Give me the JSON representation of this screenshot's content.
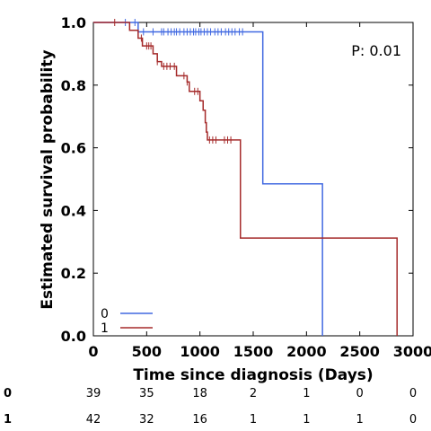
{
  "chart_data": {
    "type": "line",
    "subtype": "kaplan-meier",
    "xlabel": "Time since diagnosis (Days)",
    "ylabel": "Estimated survival probability",
    "xlim": [
      0,
      3000
    ],
    "ylim": [
      0.0,
      1.0
    ],
    "xticks": [
      "0",
      "500",
      "1000",
      "1500",
      "2000",
      "2500",
      "3000"
    ],
    "yticks": [
      "0.0",
      "0.2",
      "0.4",
      "0.6",
      "0.8",
      "1.0"
    ],
    "xtick_values": [
      0,
      500,
      1000,
      1500,
      2000,
      2500,
      3000
    ],
    "ytick_values": [
      0.0,
      0.2,
      0.4,
      0.6,
      0.8,
      1.0
    ],
    "annotation": "P: 0.01",
    "legend_position": "bottom-left",
    "series": [
      {
        "name": "0",
        "color": "#4169e1",
        "steps": [
          [
            0,
            1.0
          ],
          [
            420,
            0.97
          ],
          [
            1590,
            0.485
          ],
          [
            2150,
            0.0
          ]
        ],
        "end": 2150,
        "censor": [
          300,
          390,
          470,
          560,
          640,
          660,
          700,
          730,
          760,
          780,
          810,
          850,
          880,
          910,
          940,
          960,
          990,
          1010,
          1040,
          1070,
          1100,
          1140,
          1170,
          1200,
          1240,
          1270,
          1300,
          1330,
          1370,
          1400
        ]
      },
      {
        "name": "1",
        "color": "#a52a2a",
        "steps": [
          [
            0,
            1.0
          ],
          [
            340,
            0.975
          ],
          [
            420,
            0.95
          ],
          [
            460,
            0.925
          ],
          [
            560,
            0.9
          ],
          [
            600,
            0.875
          ],
          [
            640,
            0.86
          ],
          [
            780,
            0.83
          ],
          [
            880,
            0.81
          ],
          [
            900,
            0.78
          ],
          [
            1000,
            0.75
          ],
          [
            1030,
            0.72
          ],
          [
            1050,
            0.68
          ],
          [
            1060,
            0.65
          ],
          [
            1070,
            0.625
          ],
          [
            1380,
            0.312
          ],
          [
            2850,
            0.0
          ]
        ],
        "end": 2850,
        "censor": [
          200,
          450,
          500,
          520,
          540,
          600,
          660,
          690,
          720,
          760,
          850,
          880,
          950,
          980,
          1090,
          1120,
          1150,
          1230,
          1260,
          1290
        ]
      }
    ],
    "risk_table": {
      "times": [
        0,
        500,
        1000,
        1500,
        2000,
        2500,
        3000
      ],
      "rows": [
        {
          "label": "0",
          "counts": [
            "39",
            "35",
            "18",
            "2",
            "1",
            "0",
            "0"
          ]
        },
        {
          "label": "1",
          "counts": [
            "42",
            "32",
            "16",
            "1",
            "1",
            "1",
            "0"
          ]
        }
      ]
    }
  }
}
